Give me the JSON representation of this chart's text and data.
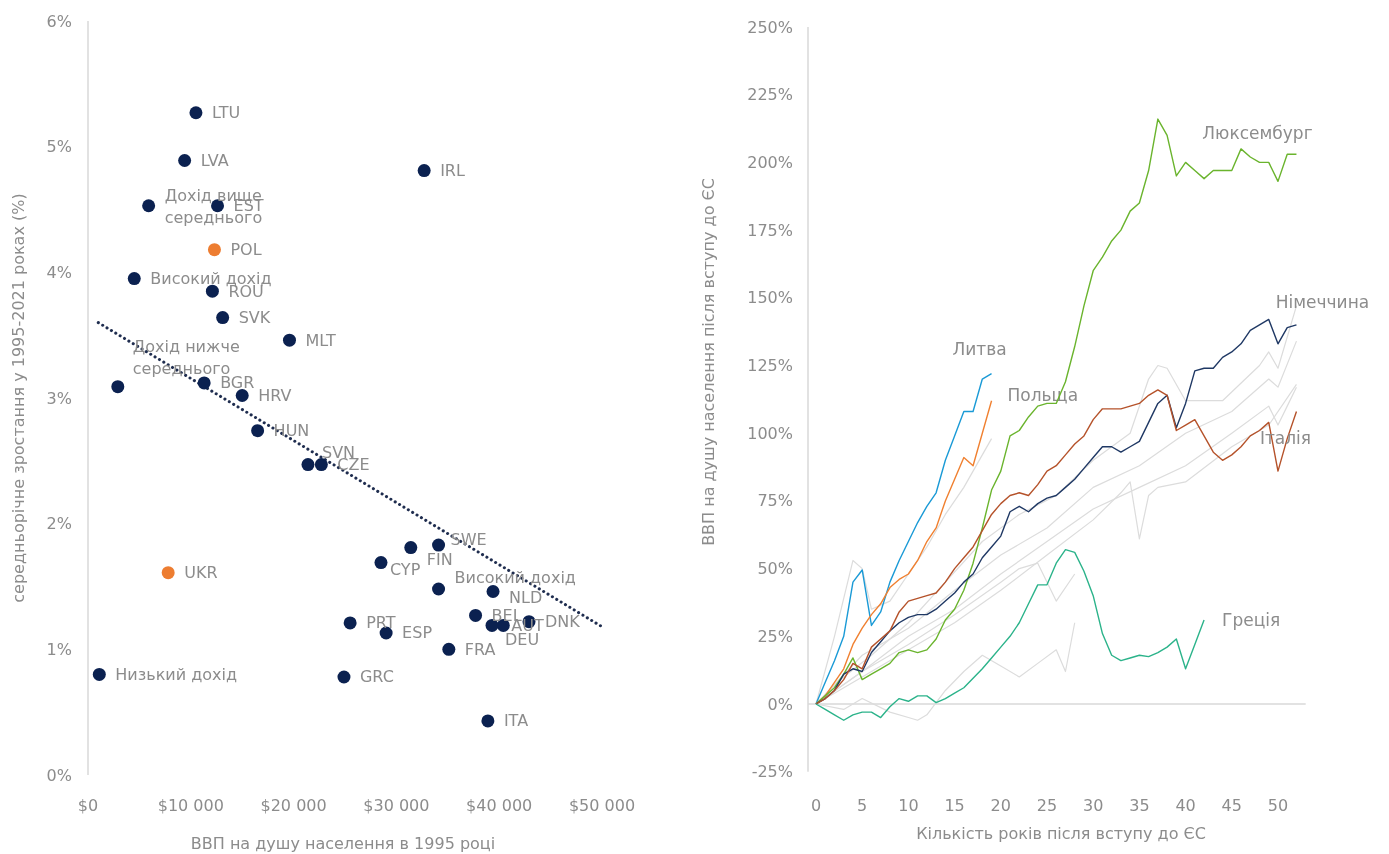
{
  "chart_data": [
    {
      "type": "scatter",
      "xlabel": "ВВП на душу населення в 1995 році",
      "ylabel": "середньорічне зростання у 1995-2021 роках (%)",
      "xlim": [
        0,
        50000
      ],
      "ylim": [
        0,
        6
      ],
      "xticks": [
        {
          "value": 0,
          "label": "$0"
        },
        {
          "value": 10000,
          "label": "$10 000"
        },
        {
          "value": 20000,
          "label": "$20 000"
        },
        {
          "value": 30000,
          "label": "$30 000"
        },
        {
          "value": 40000,
          "label": "$40 000"
        },
        {
          "value": 50000,
          "label": "$50 000"
        }
      ],
      "yticks": [
        {
          "value": 0,
          "label": "0%"
        },
        {
          "value": 1,
          "label": "1%"
        },
        {
          "value": 2,
          "label": "2%"
        },
        {
          "value": 3,
          "label": "3%"
        },
        {
          "value": 4,
          "label": "4%"
        },
        {
          "value": 5,
          "label": "5%"
        },
        {
          "value": 6,
          "label": "6%"
        }
      ],
      "series": [
        {
          "marker": "circle",
          "color": "#0b2150",
          "x": [
            10500,
            9400,
            5900,
            12600,
            4500,
            12100,
            13100,
            19600,
            2900,
            11300,
            15000,
            16500,
            21400,
            22700,
            32700,
            34100,
            31400,
            28500,
            34100,
            39400,
            37700,
            40400,
            39300,
            42900,
            25500,
            29000,
            35100,
            24900,
            38900,
            1100
          ],
          "values": [
            5.27,
            4.89,
            4.53,
            4.53,
            3.95,
            3.85,
            3.64,
            3.46,
            3.09,
            3.12,
            3.02,
            2.74,
            2.47,
            2.47,
            4.81,
            1.83,
            1.81,
            1.69,
            1.48,
            1.46,
            1.27,
            1.19,
            1.19,
            1.22,
            1.21,
            1.13,
            1.0,
            0.78,
            0.43,
            0.8
          ]
        },
        {
          "marker": "circle",
          "color": "#ed7d31",
          "x": [
            12300,
            7800
          ],
          "values": [
            4.18,
            1.61
          ]
        },
        {
          "type": "line",
          "color": "#1f2d4f",
          "line_style": "dotted",
          "x": [
            1000,
            50000
          ],
          "values": [
            3.6,
            1.18
          ]
        }
      ],
      "annotations": [
        {
          "text": "LTU",
          "x": 10500,
          "y": 5.27
        },
        {
          "text": "LVA",
          "x": 9400,
          "y": 4.89
        },
        {
          "text": "Дохід вище середнього",
          "x": 5900,
          "y": 4.53
        },
        {
          "text": "EST",
          "x": 12600,
          "y": 4.53
        },
        {
          "text": "Високий дохід",
          "x": 4500,
          "y": 3.95
        },
        {
          "text": "ROU",
          "x": 12100,
          "y": 3.85
        },
        {
          "text": "SVK",
          "x": 13100,
          "y": 3.64
        },
        {
          "text": "MLT",
          "x": 19600,
          "y": 3.46
        },
        {
          "text": "Дохід нижче середнього",
          "x": 2900,
          "y": 3.09
        },
        {
          "text": "BGR",
          "x": 11300,
          "y": 3.12
        },
        {
          "text": "HRV",
          "x": 15000,
          "y": 3.02
        },
        {
          "text": "HUN",
          "x": 16500,
          "y": 2.74
        },
        {
          "text": "SVN",
          "x": 21400,
          "y": 2.47
        },
        {
          "text": "CZE",
          "x": 22700,
          "y": 2.47
        },
        {
          "text": "IRL",
          "x": 32700,
          "y": 4.81
        },
        {
          "text": "SWE",
          "x": 34100,
          "y": 1.83
        },
        {
          "text": "FIN",
          "x": 31400,
          "y": 1.81
        },
        {
          "text": "CYP",
          "x": 28500,
          "y": 1.69
        },
        {
          "text": "Високий дохід",
          "x": 34100,
          "y": 1.48
        },
        {
          "text": "NLD",
          "x": 39400,
          "y": 1.46
        },
        {
          "text": "BEL",
          "x": 37700,
          "y": 1.27
        },
        {
          "text": "AUT",
          "x": 40400,
          "y": 1.19
        },
        {
          "text": "DEU",
          "x": 39300,
          "y": 1.19
        },
        {
          "text": "DNK",
          "x": 42900,
          "y": 1.22
        },
        {
          "text": "PRT",
          "x": 25500,
          "y": 1.21
        },
        {
          "text": "ESP",
          "x": 29000,
          "y": 1.13
        },
        {
          "text": "FRA",
          "x": 35100,
          "y": 1.0
        },
        {
          "text": "GRC",
          "x": 24900,
          "y": 0.78
        },
        {
          "text": "ITA",
          "x": 38900,
          "y": 0.43
        },
        {
          "text": "Низький дохід",
          "x": 1100,
          "y": 0.8
        },
        {
          "text": "POL",
          "x": 12300,
          "y": 4.18
        },
        {
          "text": "UKR",
          "x": 7800,
          "y": 1.61
        }
      ]
    },
    {
      "type": "line",
      "xlabel": "Кількість років після вступу до ЄС",
      "ylabel": "ВВП на душу населення після вступу до ЄС",
      "xlim": [
        0,
        53
      ],
      "ylim": [
        -25,
        250
      ],
      "xticks": [
        0,
        5,
        10,
        15,
        20,
        25,
        30,
        35,
        40,
        45,
        50
      ],
      "yticks": [
        {
          "value": -25,
          "label": "-25%"
        },
        {
          "value": 0,
          "label": "0%"
        },
        {
          "value": 25,
          "label": "25%"
        },
        {
          "value": 50,
          "label": "50%"
        },
        {
          "value": 75,
          "label": "75%"
        },
        {
          "value": 100,
          "label": "100%"
        },
        {
          "value": 125,
          "label": "125%"
        },
        {
          "value": 150,
          "label": "150%"
        },
        {
          "value": 175,
          "label": "175%"
        },
        {
          "value": 200,
          "label": "200%"
        },
        {
          "value": 225,
          "label": "225%"
        },
        {
          "value": 250,
          "label": "250%"
        }
      ],
      "x": [
        0,
        1,
        2,
        3,
        4,
        5,
        6,
        7,
        8,
        9,
        10,
        11,
        12,
        13,
        14,
        15,
        16,
        17,
        18,
        19,
        20,
        21,
        22,
        23,
        24,
        25,
        26,
        27,
        28,
        29,
        30,
        31,
        32,
        33,
        34,
        35,
        36,
        37,
        38,
        39,
        40,
        41,
        42,
        43,
        44,
        45,
        46,
        47,
        48,
        49,
        50,
        51,
        52
      ],
      "series": [
        {
          "color": "#dcdcdc",
          "x": [
            0,
            3,
            6,
            10,
            14,
            18,
            22,
            26,
            30,
            34,
            36,
            37,
            38,
            40,
            44,
            48,
            49,
            50,
            52
          ],
          "values": [
            0,
            10,
            18,
            30,
            45,
            60,
            70,
            77,
            90,
            100,
            120,
            125,
            124,
            112,
            112,
            125,
            130,
            124,
            147
          ]
        },
        {
          "color": "#dcdcdc",
          "x": [
            0,
            5,
            10,
            15,
            20,
            25,
            30,
            35,
            40,
            45,
            49,
            50,
            52
          ],
          "values": [
            0,
            18,
            28,
            42,
            55,
            65,
            80,
            88,
            100,
            108,
            120,
            117,
            134
          ]
        },
        {
          "color": "#dcdcdc",
          "x": [
            0,
            5,
            10,
            15,
            20,
            25,
            30,
            35,
            40,
            45,
            49,
            50,
            51,
            52
          ],
          "values": [
            0,
            12,
            25,
            35,
            48,
            60,
            72,
            80,
            88,
            100,
            110,
            103,
            110,
            117
          ]
        },
        {
          "color": "#dcdcdc",
          "x": [
            0,
            2,
            4,
            5,
            6,
            8,
            10,
            12,
            14,
            16,
            18,
            19
          ],
          "values": [
            0,
            25,
            53,
            50,
            35,
            38,
            48,
            58,
            70,
            80,
            92,
            98
          ]
        },
        {
          "color": "#dcdcdc",
          "x": [
            0,
            3,
            5,
            8,
            10,
            11,
            12,
            14,
            16,
            18,
            20,
            22,
            24,
            26,
            27,
            28
          ],
          "values": [
            0,
            -2,
            2,
            -3,
            -5,
            -6,
            -4,
            5,
            12,
            18,
            14,
            10,
            15,
            20,
            12,
            30
          ]
        },
        {
          "color": "#dcdcdc",
          "x": [
            0,
            5,
            10,
            15,
            20,
            22,
            24,
            26,
            28
          ],
          "values": [
            0,
            12,
            22,
            33,
            45,
            50,
            52,
            38,
            48
          ]
        },
        {
          "color": "#dcdcdc",
          "x": [
            0,
            5,
            10,
            15,
            20,
            25,
            30,
            33,
            34,
            35,
            36,
            37,
            40,
            45,
            49,
            52
          ],
          "values": [
            0,
            10,
            20,
            30,
            42,
            55,
            68,
            78,
            82,
            61,
            77,
            80,
            82,
            95,
            103,
            118
          ]
        },
        {
          "name": "Литва",
          "color": "#1a9ad6",
          "values": [
            0,
            8,
            16,
            25,
            45,
            49.5,
            29,
            34,
            45,
            53,
            60,
            67,
            73,
            78,
            90,
            99,
            108,
            108,
            120,
            122,
            null,
            null,
            null,
            null,
            null,
            null,
            null,
            null,
            null,
            null,
            null,
            null,
            null,
            null,
            null,
            null,
            null,
            null,
            null,
            null,
            null,
            null,
            null,
            null,
            null,
            null,
            null,
            null,
            null,
            null,
            null,
            null,
            null
          ]
        },
        {
          "name": "Польща",
          "color": "#f08030",
          "values": [
            0,
            3,
            8,
            13,
            22,
            28,
            33,
            37,
            43,
            46,
            48,
            53,
            60,
            65,
            75,
            83,
            91,
            88,
            100,
            112,
            null,
            null,
            null,
            null,
            null,
            null,
            null,
            null,
            null,
            null,
            null,
            null,
            null,
            null,
            null,
            null,
            null,
            null,
            null,
            null,
            null,
            null,
            null,
            null,
            null,
            null,
            null,
            null,
            null,
            null,
            null,
            null,
            null
          ]
        },
        {
          "name": "Люксембург",
          "color": "#6ab42d",
          "values": [
            0,
            3,
            6,
            11,
            17,
            9,
            11,
            13,
            15,
            19,
            20,
            19,
            20,
            24,
            31,
            35,
            42,
            52,
            65,
            79,
            86,
            99,
            101,
            106,
            110,
            111,
            111,
            119,
            132,
            147,
            160,
            165,
            171,
            175,
            182,
            185,
            197,
            216,
            210,
            195,
            200,
            197,
            194,
            197,
            197,
            197,
            205,
            202,
            200,
            200,
            193,
            203,
            203
          ]
        },
        {
          "name": "Німеччина",
          "color": "#1f3864",
          "values": [
            0,
            2,
            5,
            11,
            13,
            12,
            19,
            23,
            27,
            30,
            32,
            33,
            33,
            35,
            38,
            41,
            45,
            48,
            54,
            58,
            62,
            71,
            73,
            71,
            74,
            76,
            77,
            80,
            83,
            87,
            91,
            95,
            95,
            93,
            95,
            97,
            104,
            111,
            114,
            102,
            111,
            123,
            124,
            124,
            128,
            130,
            133,
            138,
            140,
            142,
            133,
            139,
            140
          ]
        },
        {
          "name": "Італія",
          "color": "#b5522a",
          "values": [
            0,
            2,
            5,
            9,
            15,
            13,
            21,
            24,
            27,
            34,
            38,
            39,
            40,
            41,
            45,
            50,
            54,
            58,
            64,
            70,
            74,
            77,
            78,
            77,
            81,
            86,
            88,
            92,
            96,
            99,
            105,
            109,
            109,
            109,
            110,
            111,
            114,
            116,
            114,
            101,
            103,
            105,
            99,
            93,
            90,
            92,
            95,
            99,
            101,
            104,
            86,
            98,
            108
          ]
        },
        {
          "name": "Греція",
          "color": "#2bb38a",
          "values": [
            0,
            -2,
            -4,
            -6,
            -4,
            -3,
            -3,
            -5,
            -1,
            2,
            1,
            3,
            3,
            0.5,
            2,
            4,
            6,
            9.5,
            13,
            17,
            21,
            25,
            30,
            37,
            44,
            44,
            52,
            57,
            56,
            49,
            40,
            26,
            18,
            16,
            17,
            18,
            17.5,
            19,
            21,
            24,
            13,
            22,
            31,
            null,
            null,
            null,
            null,
            null,
            null,
            null,
            null,
            null,
            null
          ]
        }
      ]
    }
  ]
}
